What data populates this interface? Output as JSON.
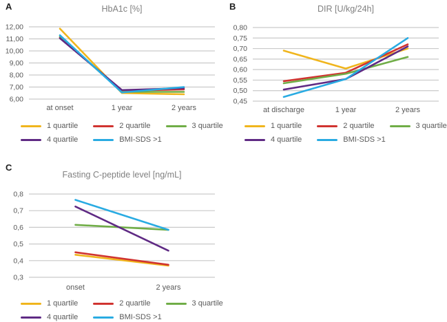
{
  "figure": {
    "background": "#ffffff",
    "title_color": "#808080",
    "tick_text_color": "#595959",
    "grid_color": "#c9c9c9",
    "panel_letter_color": "#1f1f1f"
  },
  "chart_data": [
    {
      "type": "line",
      "panel": "A",
      "title": "HbA1c [%]",
      "categories": [
        "at onset",
        "1 year",
        "2 years"
      ],
      "ylim": [
        6,
        12
      ],
      "grid": true,
      "legend_position": "bottom",
      "yticks": [
        {
          "value": 12,
          "label": "12,00"
        },
        {
          "value": 11,
          "label": "11,00"
        },
        {
          "value": 10,
          "label": "10,00"
        },
        {
          "value": 9,
          "label": "9,00"
        },
        {
          "value": 8,
          "label": "8,00"
        },
        {
          "value": 7,
          "label": "7,00"
        },
        {
          "value": 6,
          "label": "6,00"
        }
      ],
      "series": [
        {
          "name": "1 quartile",
          "color": "#f0b51d",
          "values": [
            11.85,
            6.5,
            6.4
          ]
        },
        {
          "name": "2 quartile",
          "color": "#d03330",
          "values": [
            11.1,
            6.7,
            6.8
          ]
        },
        {
          "name": "3 quartile",
          "color": "#70ad47",
          "values": [
            11.2,
            6.6,
            6.6
          ]
        },
        {
          "name": "4 quartile",
          "color": "#5f2a84",
          "values": [
            11.05,
            6.75,
            6.9
          ]
        },
        {
          "name": "BMI-SDS >1",
          "color": "#29abe2",
          "values": [
            11.3,
            6.55,
            7.0
          ]
        }
      ]
    },
    {
      "type": "line",
      "panel": "B",
      "title": "DIR [U/kg/24h]",
      "categories": [
        "at discharge",
        "1 year",
        "2 years"
      ],
      "ylim": [
        0.45,
        0.8
      ],
      "grid": true,
      "legend_position": "bottom",
      "yticks": [
        {
          "value": 0.8,
          "label": "0,80"
        },
        {
          "value": 0.75,
          "label": "0,75"
        },
        {
          "value": 0.7,
          "label": "0,70"
        },
        {
          "value": 0.65,
          "label": "0,65"
        },
        {
          "value": 0.6,
          "label": "0,60"
        },
        {
          "value": 0.55,
          "label": "0,55"
        },
        {
          "value": 0.5,
          "label": "0,50"
        },
        {
          "value": 0.45,
          "label": "0,45"
        }
      ],
      "series": [
        {
          "name": "1 quartile",
          "color": "#f0b51d",
          "values": [
            0.69,
            0.605,
            0.7
          ]
        },
        {
          "name": "2 quartile",
          "color": "#d03330",
          "values": [
            0.545,
            0.585,
            0.72
          ]
        },
        {
          "name": "3 quartile",
          "color": "#70ad47",
          "values": [
            0.535,
            0.58,
            0.66
          ]
        },
        {
          "name": "4 quartile",
          "color": "#5f2a84",
          "values": [
            0.505,
            0.555,
            0.71
          ]
        },
        {
          "name": "BMI-SDS >1",
          "color": "#29abe2",
          "values": [
            0.47,
            0.555,
            0.75
          ]
        }
      ]
    },
    {
      "type": "line",
      "panel": "C",
      "title": "Fasting C-peptide level [ng/mL]",
      "categories": [
        "onset",
        "2 years"
      ],
      "ylim": [
        0.3,
        0.8
      ],
      "grid": true,
      "legend_position": "bottom",
      "yticks": [
        {
          "value": 0.8,
          "label": "0,8"
        },
        {
          "value": 0.7,
          "label": "0,7"
        },
        {
          "value": 0.6,
          "label": "0,6"
        },
        {
          "value": 0.5,
          "label": "0,5"
        },
        {
          "value": 0.4,
          "label": "0,4"
        },
        {
          "value": 0.3,
          "label": "0,3"
        }
      ],
      "series": [
        {
          "name": "1 quartile",
          "color": "#f0b51d",
          "values": [
            0.435,
            0.37
          ]
        },
        {
          "name": "2 quartile",
          "color": "#d03330",
          "values": [
            0.45,
            0.375
          ]
        },
        {
          "name": "3 quartile",
          "color": "#70ad47",
          "values": [
            0.615,
            0.585
          ]
        },
        {
          "name": "4 quartile",
          "color": "#5f2a84",
          "values": [
            0.725,
            0.46
          ]
        },
        {
          "name": "BMI-SDS >1",
          "color": "#29abe2",
          "values": [
            0.765,
            0.585
          ]
        }
      ]
    }
  ]
}
